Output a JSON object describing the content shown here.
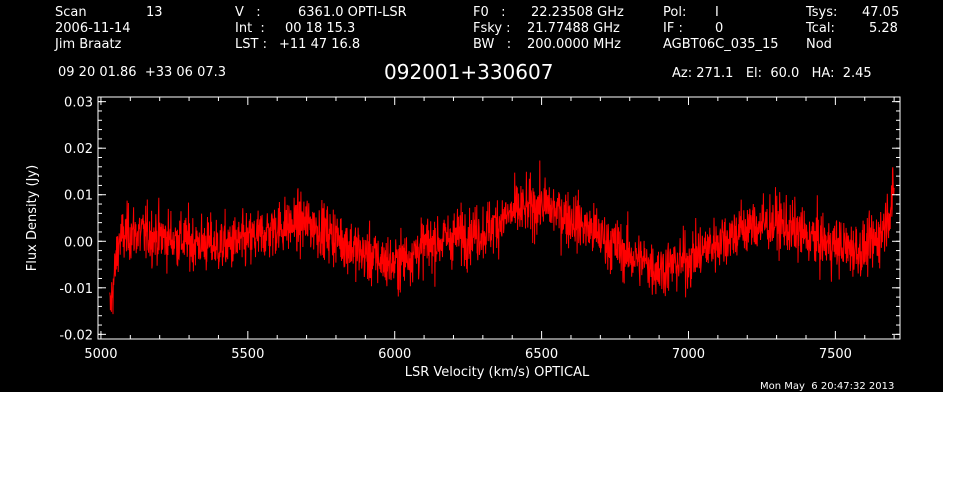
{
  "header": {
    "col1": {
      "scan_label": "Scan",
      "scan_value": "13",
      "date": "2006-11-14",
      "observer": "Jim Braatz"
    },
    "col2": {
      "v_label": "V   :",
      "v_value": "6361.0 OPTI-LSR",
      "int_label": "Int  :",
      "int_value": "00 18 15.3",
      "lst_label": "LST :",
      "lst_value": "+11 47 16.8"
    },
    "col3": {
      "f0_label": "F0   :",
      "f0_value": "22.23508 GHz",
      "fsky_label": "Fsky :",
      "fsky_value": "21.77488 GHz",
      "bw_label": "BW   :",
      "bw_value": "200.0000 MHz"
    },
    "col4": {
      "pol_label": "Pol:",
      "pol_value": "I",
      "if_label": "IF :",
      "if_value": "0",
      "project": "AGBT06C_035_15"
    },
    "col5": {
      "tsys_label": "Tsys:",
      "tsys_value": "47.05",
      "tcal_label": "Tcal:",
      "tcal_value": "5.28",
      "mode": "Nod"
    },
    "coords": "09 20 01.86  +33 06 07.3",
    "source": "092001+330607",
    "pointing": "Az: 271.1   El:  60.0   HA:  2.45",
    "timestamp": "Mon May  6 20:47:32 2013"
  },
  "colors": {
    "background": "#000000",
    "trace": "#ff0000",
    "axes": "#ffffff"
  },
  "chart_data": {
    "type": "line",
    "title": "092001+330607",
    "xlabel": "LSR Velocity (km/s) OPTICAL",
    "ylabel": "Flux Density (Jy)",
    "xlim": [
      4990,
      7720
    ],
    "ylim": [
      -0.021,
      0.031
    ],
    "xticks": [
      5000,
      5500,
      6000,
      6500,
      7000,
      7500
    ],
    "xtick_labels": [
      "5000",
      "5500",
      "6000",
      "6500",
      "7000",
      "7500"
    ],
    "yticks": [
      -0.02,
      -0.01,
      0.0,
      0.01,
      0.02,
      0.03
    ],
    "ytick_labels": [
      "-0.02",
      "-0.01",
      "0.00",
      "0.01",
      "0.02",
      "0.03"
    ],
    "grid": false,
    "series": [
      {
        "color": "#ff0000",
        "x": [
          5030,
          5045,
          5060,
          5100,
          5200,
          5300,
          5400,
          5500,
          5600,
          5700,
          5800,
          5900,
          6000,
          6100,
          6200,
          6300,
          6400,
          6500,
          6600,
          6700,
          6800,
          6900,
          7000,
          7100,
          7200,
          7300,
          7400,
          7500,
          7600,
          7650,
          7680,
          7700
        ],
        "y": [
          -0.015,
          -0.008,
          0.0,
          0.002,
          0.001,
          0.0,
          -0.001,
          0.0,
          0.003,
          0.004,
          0.001,
          -0.003,
          -0.005,
          -0.001,
          0.001,
          0.002,
          0.006,
          0.008,
          0.005,
          0.001,
          -0.003,
          -0.006,
          -0.004,
          0.0,
          0.003,
          0.004,
          0.001,
          -0.001,
          -0.002,
          0.001,
          0.006,
          0.01
        ],
        "noise_rms": 0.005
      }
    ]
  }
}
